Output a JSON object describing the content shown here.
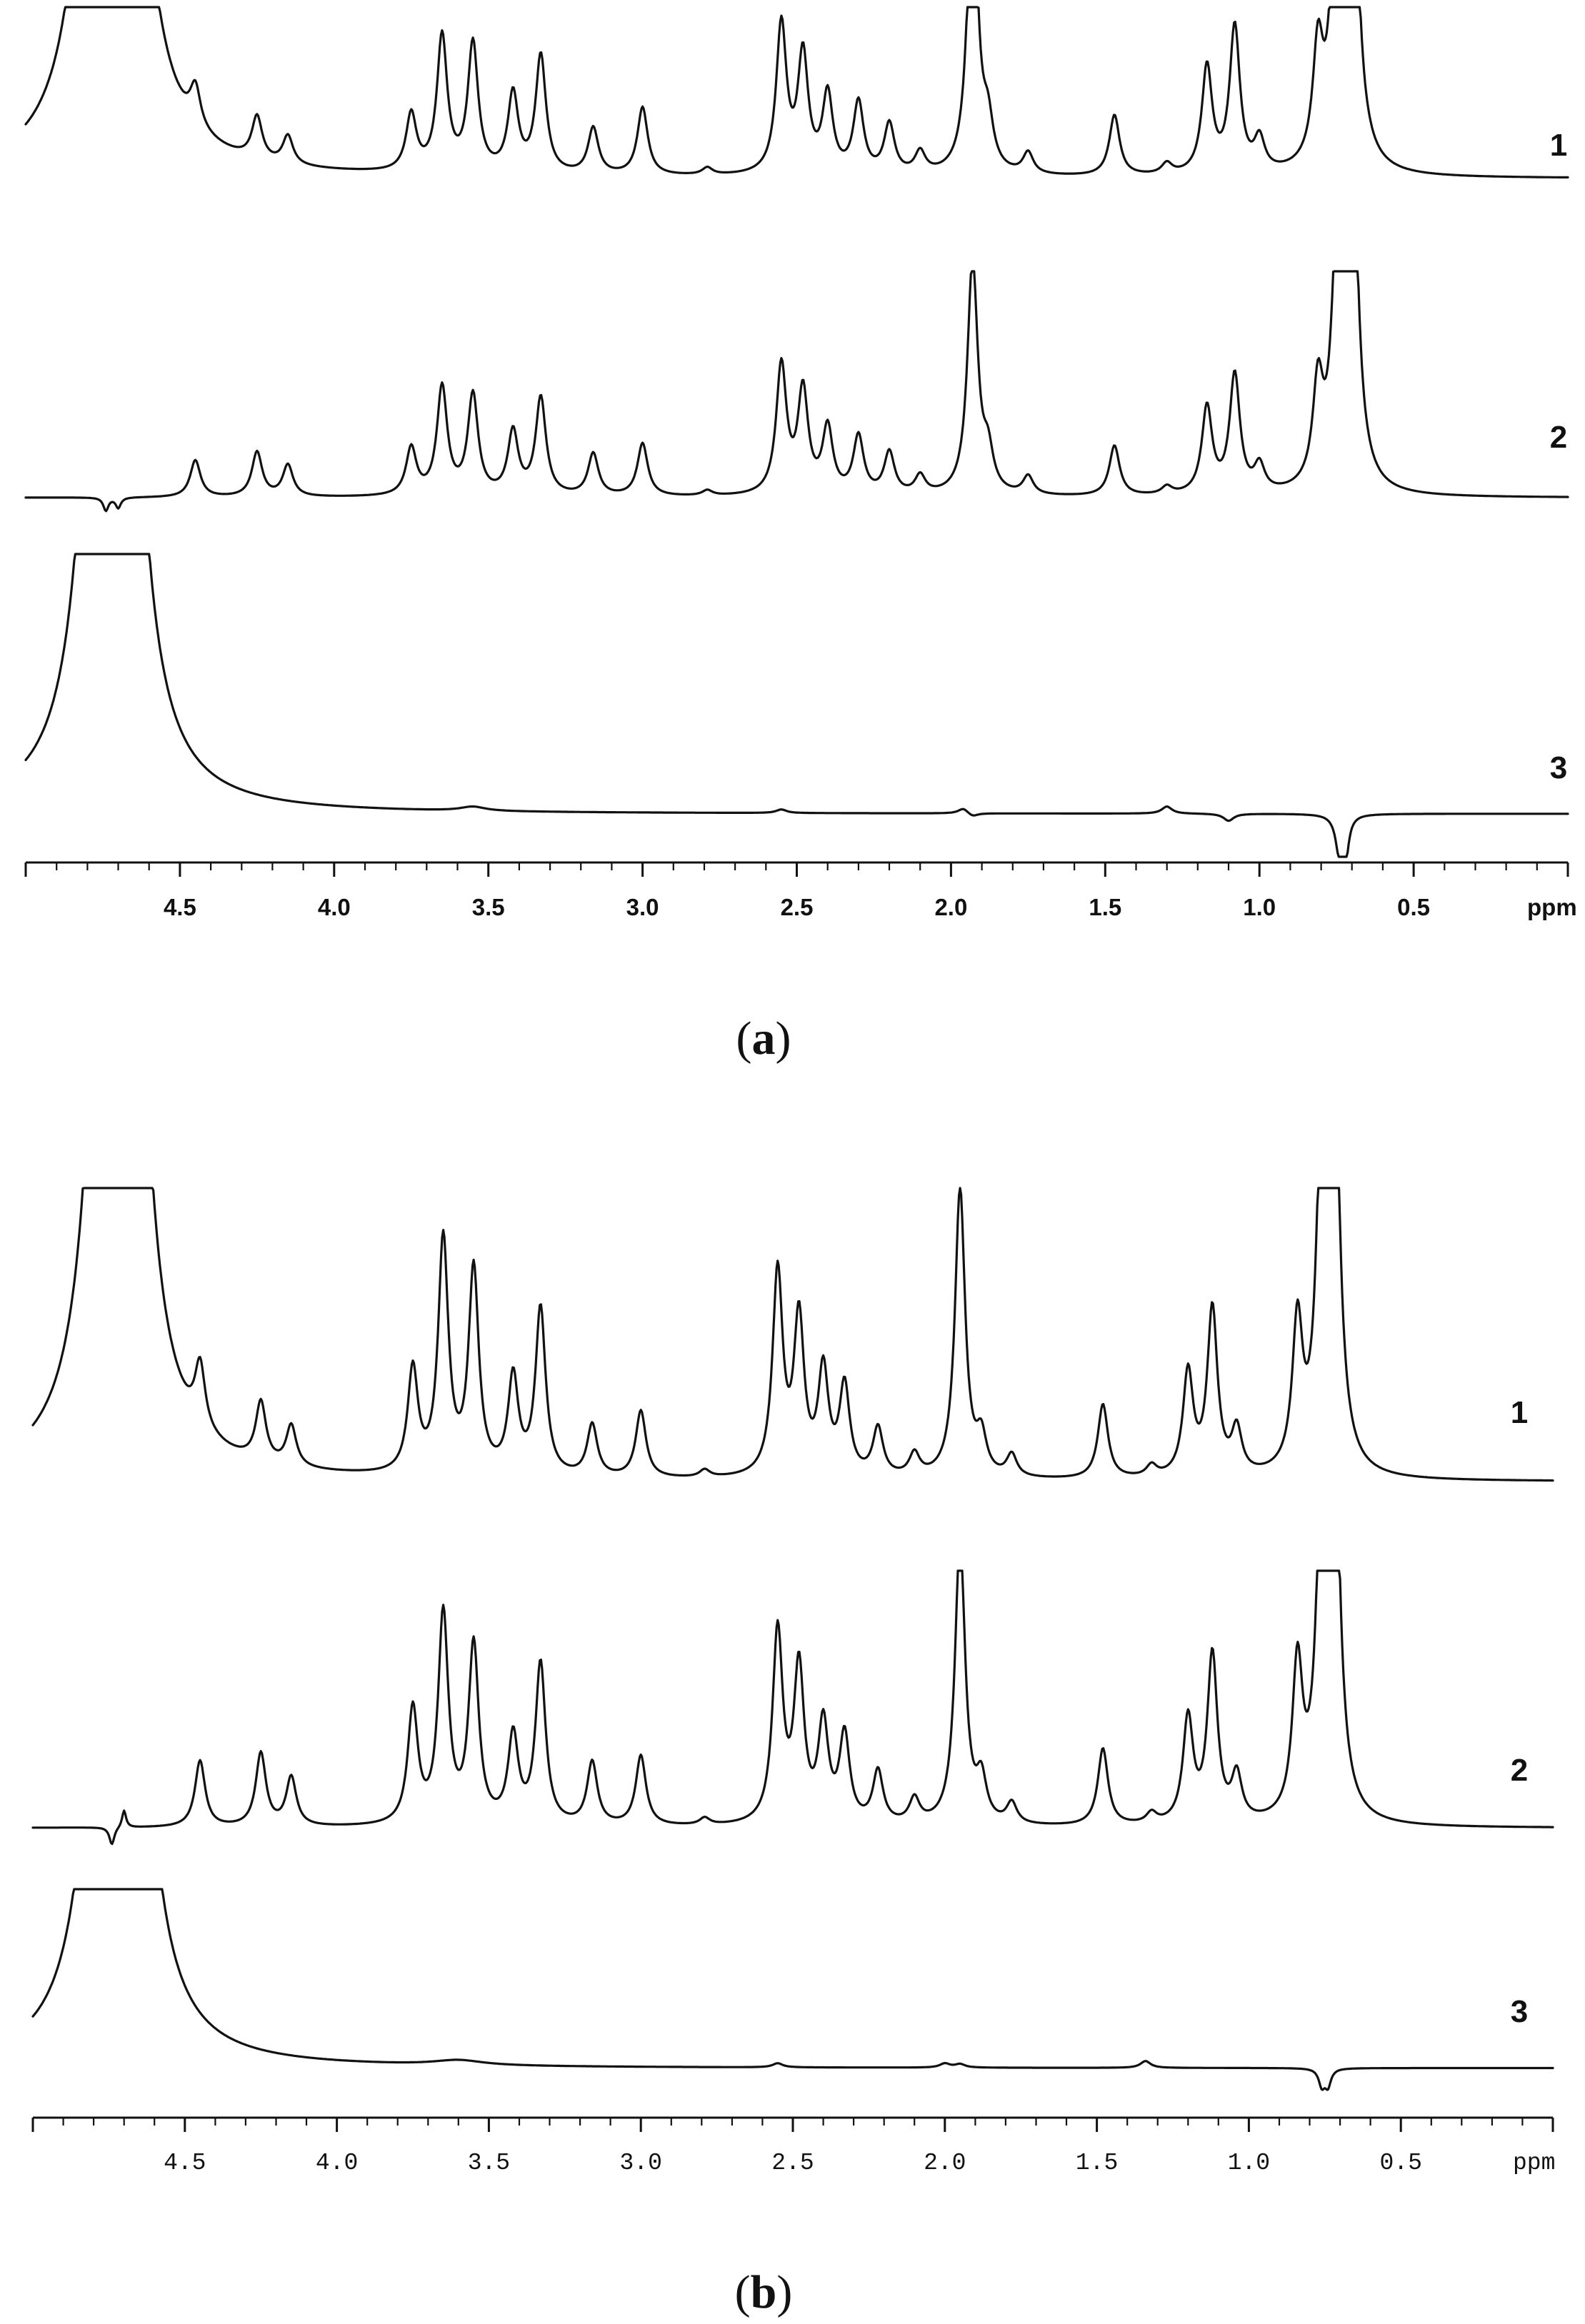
{
  "panels": [
    {
      "label": "a",
      "x_unit": "ppm",
      "trace_labels": [
        "1",
        "2",
        "3"
      ],
      "xticks": [
        "4.5",
        "4.0",
        "3.5",
        "3.0",
        "2.5",
        "2.0",
        "1.5",
        "1.0",
        "0.5"
      ]
    },
    {
      "label": "b",
      "x_unit": "ppm",
      "trace_labels": [
        "1",
        "2",
        "3"
      ],
      "xticks": [
        "4.5",
        "4.0",
        "3.5",
        "3.0",
        "2.5",
        "2.0",
        "1.5",
        "1.0",
        "0.5"
      ]
    }
  ],
  "chart_data": [
    {
      "type": "line",
      "panel": "a",
      "xlabel": "ppm",
      "xlim": [
        5.0,
        0.0
      ],
      "x_reversed": true,
      "ylim": [
        0,
        1.0
      ],
      "grid": false,
      "legend": "none",
      "peak_width": 0.02,
      "series": [
        {
          "name": "1",
          "baseline": 0.04,
          "peaks": [
            [
              4.72,
              6.0,
              0.045
            ],
            [
              4.45,
              0.11
            ],
            [
              4.25,
              0.12
            ],
            [
              4.15,
              0.08
            ],
            [
              3.75,
              0.16
            ],
            [
              3.65,
              0.38
            ],
            [
              3.55,
              0.36
            ],
            [
              3.42,
              0.22
            ],
            [
              3.33,
              0.33
            ],
            [
              3.16,
              0.13
            ],
            [
              3.0,
              0.19
            ],
            [
              2.79,
              0.02
            ],
            [
              2.55,
              0.42
            ],
            [
              2.48,
              0.33
            ],
            [
              2.4,
              0.22
            ],
            [
              2.3,
              0.2
            ],
            [
              2.2,
              0.14
            ],
            [
              2.1,
              0.06
            ],
            [
              1.93,
              0.84
            ],
            [
              1.88,
              0.12
            ],
            [
              1.75,
              0.06
            ],
            [
              1.47,
              0.17
            ],
            [
              1.3,
              0.03
            ],
            [
              1.17,
              0.3
            ],
            [
              1.08,
              0.41
            ],
            [
              1.0,
              0.09
            ],
            [
              0.81,
              0.31
            ],
            [
              0.75,
              0.6
            ],
            [
              0.72,
              0.88
            ],
            [
              0.7,
              0.84
            ]
          ]
        },
        {
          "name": "2",
          "baseline": 0.04,
          "peaks": [
            [
              4.74,
              -0.05,
              0.01
            ],
            [
              4.7,
              -0.04,
              0.01
            ],
            [
              4.45,
              0.14
            ],
            [
              4.25,
              0.17
            ],
            [
              4.15,
              0.12
            ],
            [
              3.75,
              0.18
            ],
            [
              3.65,
              0.41
            ],
            [
              3.55,
              0.38
            ],
            [
              3.42,
              0.24
            ],
            [
              3.33,
              0.37
            ],
            [
              3.16,
              0.16
            ],
            [
              3.0,
              0.2
            ],
            [
              2.79,
              0.02
            ],
            [
              2.55,
              0.49
            ],
            [
              2.48,
              0.39
            ],
            [
              2.4,
              0.25
            ],
            [
              2.3,
              0.22
            ],
            [
              2.2,
              0.16
            ],
            [
              2.1,
              0.07
            ],
            [
              1.93,
              0.89
            ],
            [
              1.88,
              0.14
            ],
            [
              1.75,
              0.07
            ],
            [
              1.47,
              0.19
            ],
            [
              1.3,
              0.03
            ],
            [
              1.17,
              0.33
            ],
            [
              1.08,
              0.45
            ],
            [
              1.0,
              0.1
            ],
            [
              0.81,
              0.37
            ],
            [
              0.75,
              0.6
            ],
            [
              0.72,
              1.15
            ],
            [
              0.7,
              1.12
            ]
          ]
        },
        {
          "name": "3",
          "baseline": 0.04,
          "peaks": [
            [
              4.72,
              6.0,
              0.045
            ],
            [
              3.55,
              0.012,
              0.05
            ],
            [
              2.55,
              0.01
            ],
            [
              1.96,
              0.015
            ],
            [
              1.93,
              -0.01
            ],
            [
              1.3,
              0.02
            ],
            [
              1.1,
              -0.02
            ],
            [
              0.74,
              -0.11,
              0.015
            ],
            [
              0.72,
              -0.1,
              0.012
            ]
          ]
        }
      ]
    },
    {
      "type": "line",
      "panel": "b",
      "xlabel": "ppm",
      "xlim": [
        5.0,
        0.0
      ],
      "x_reversed": true,
      "ylim": [
        0,
        1.0
      ],
      "grid": false,
      "legend": "none",
      "peak_width": 0.02,
      "series": [
        {
          "name": "1",
          "baseline": 0.04,
          "peaks": [
            [
              4.72,
              6.0,
              0.045
            ],
            [
              4.45,
              0.17
            ],
            [
              4.25,
              0.16
            ],
            [
              4.15,
              0.11
            ],
            [
              3.75,
              0.28
            ],
            [
              3.65,
              0.63
            ],
            [
              3.55,
              0.55
            ],
            [
              3.42,
              0.26
            ],
            [
              3.33,
              0.45
            ],
            [
              3.16,
              0.14
            ],
            [
              3.0,
              0.18
            ],
            [
              2.79,
              0.02
            ],
            [
              2.55,
              0.55
            ],
            [
              2.48,
              0.42
            ],
            [
              2.4,
              0.28
            ],
            [
              2.33,
              0.24
            ],
            [
              2.22,
              0.13
            ],
            [
              2.1,
              0.06
            ],
            [
              1.95,
              0.78
            ],
            [
              1.88,
              0.1
            ],
            [
              1.78,
              0.06
            ],
            [
              1.48,
              0.2
            ],
            [
              1.32,
              0.03
            ],
            [
              1.2,
              0.28
            ],
            [
              1.12,
              0.45
            ],
            [
              1.04,
              0.12
            ],
            [
              0.84,
              0.39
            ],
            [
              0.76,
              0.6
            ],
            [
              0.74,
              0.9
            ],
            [
              0.72,
              0.88
            ]
          ]
        },
        {
          "name": "2",
          "baseline": 0.04,
          "peaks": [
            [
              4.74,
              -0.05,
              0.01
            ],
            [
              4.7,
              0.05,
              0.008
            ],
            [
              4.45,
              0.19
            ],
            [
              4.25,
              0.21
            ],
            [
              4.15,
              0.14
            ],
            [
              3.75,
              0.33
            ],
            [
              3.65,
              0.6
            ],
            [
              3.55,
              0.51
            ],
            [
              3.42,
              0.25
            ],
            [
              3.33,
              0.46
            ],
            [
              3.16,
              0.18
            ],
            [
              3.0,
              0.2
            ],
            [
              2.79,
              0.02
            ],
            [
              2.55,
              0.55
            ],
            [
              2.48,
              0.44
            ],
            [
              2.4,
              0.28
            ],
            [
              2.33,
              0.25
            ],
            [
              2.22,
              0.15
            ],
            [
              2.1,
              0.07
            ],
            [
              1.95,
              0.82
            ],
            [
              1.88,
              0.12
            ],
            [
              1.78,
              0.06
            ],
            [
              1.48,
              0.22
            ],
            [
              1.32,
              0.03
            ],
            [
              1.2,
              0.3
            ],
            [
              1.12,
              0.48
            ],
            [
              1.04,
              0.13
            ],
            [
              0.84,
              0.43
            ],
            [
              0.76,
              0.6
            ],
            [
              0.74,
              0.93
            ],
            [
              0.72,
              0.91
            ]
          ]
        },
        {
          "name": "3",
          "baseline": 0.04,
          "peaks": [
            [
              4.72,
              6.0,
              0.045
            ],
            [
              3.6,
              0.015,
              0.1
            ],
            [
              2.55,
              0.012
            ],
            [
              2.0,
              0.012
            ],
            [
              1.95,
              0.01
            ],
            [
              1.34,
              0.02
            ],
            [
              0.76,
              -0.05,
              0.012
            ],
            [
              0.74,
              -0.05,
              0.012
            ]
          ]
        }
      ]
    }
  ]
}
